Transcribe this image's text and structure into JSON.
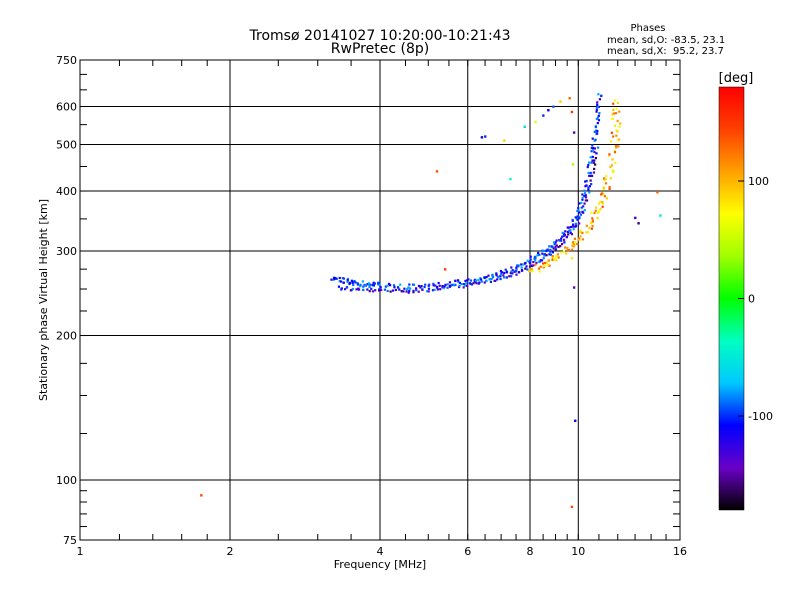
{
  "header": {
    "title_line1": "Tromsø 20141027 10:20:00-10:21:43",
    "title_line2": "RwPretec (8p)"
  },
  "stats": {
    "heading": "Phases",
    "line_o": "mean, sd,O: -83.5, 23.1",
    "line_x": "mean, sd,X:  95.2, 23.7"
  },
  "colorbar": {
    "unit": "[deg]",
    "range": [
      -180,
      180
    ],
    "ticks": [
      100,
      0,
      -100
    ],
    "tick_labels": [
      "100",
      "0",
      "-100"
    ],
    "gradient_colors": [
      "#000000",
      "#6a00c8",
      "#0000ff",
      "#00c8ff",
      "#00ffc0",
      "#00ff00",
      "#a0ff00",
      "#ffff00",
      "#ffa000",
      "#ff4000",
      "#ff0000"
    ]
  },
  "chart_data": {
    "type": "scatter",
    "title": "Tromsø 20141027 10:20:00-10:21:43",
    "subtitle": "RwPretec (8p)",
    "xlabel": "Frequency [MHz]",
    "ylabel": "Stationary phase Virtual Height [km]",
    "x_scale": "log",
    "y_scale": "log",
    "xlim": [
      1,
      16
    ],
    "ylim": [
      75,
      750
    ],
    "grid": true,
    "x_ticks": [
      1,
      2,
      4,
      6,
      8,
      10,
      16
    ],
    "x_tick_labels": [
      "1",
      "2",
      "4",
      "6",
      "8",
      "10",
      "16"
    ],
    "x_gridlines": [
      2,
      4,
      6,
      8,
      10
    ],
    "y_ticks": [
      75,
      100,
      200,
      300,
      400,
      500,
      600,
      750
    ],
    "y_tick_labels": [
      "75",
      "100",
      "200",
      "300",
      "400",
      "500",
      "600",
      "750"
    ],
    "y_gridlines": [
      100,
      200,
      300,
      400,
      500,
      600
    ],
    "o_mode_trace": {
      "phase_deg": -100,
      "points": [
        [
          3.2,
          264
        ],
        [
          3.4,
          260
        ],
        [
          3.6,
          257
        ],
        [
          3.8,
          255
        ],
        [
          4.0,
          255
        ],
        [
          4.5,
          252
        ],
        [
          5.0,
          254
        ],
        [
          5.5,
          256
        ],
        [
          6.0,
          259
        ],
        [
          6.5,
          263
        ],
        [
          7.0,
          270
        ],
        [
          7.5,
          277
        ],
        [
          8.0,
          287
        ],
        [
          8.5,
          298
        ],
        [
          9.0,
          312
        ],
        [
          9.5,
          330
        ],
        [
          10.0,
          360
        ],
        [
          10.3,
          400
        ],
        [
          10.6,
          460
        ],
        [
          10.8,
          520
        ],
        [
          10.95,
          580
        ],
        [
          11.05,
          640
        ]
      ]
    },
    "o_mode_lower_trace": {
      "phase_deg": -120,
      "points": [
        [
          3.3,
          252
        ],
        [
          3.6,
          249
        ],
        [
          4.0,
          248
        ],
        [
          4.5,
          248
        ],
        [
          5.0,
          249
        ],
        [
          5.5,
          252
        ],
        [
          6.0,
          255
        ],
        [
          6.5,
          259
        ],
        [
          7.0,
          264
        ],
        [
          7.5,
          270
        ],
        [
          8.0,
          279
        ],
        [
          8.5,
          290
        ],
        [
          9.0,
          303
        ],
        [
          9.5,
          320
        ],
        [
          10.0,
          345
        ],
        [
          10.4,
          385
        ],
        [
          10.7,
          440
        ],
        [
          10.9,
          500
        ]
      ]
    },
    "x_mode_trace": {
      "phase_deg": 100,
      "points": [
        [
          8.0,
          272
        ],
        [
          8.5,
          280
        ],
        [
          9.0,
          290
        ],
        [
          9.5,
          303
        ],
        [
          10.0,
          318
        ],
        [
          10.5,
          338
        ],
        [
          11.0,
          365
        ],
        [
          11.3,
          395
        ],
        [
          11.6,
          440
        ],
        [
          11.8,
          500
        ],
        [
          11.9,
          560
        ],
        [
          11.95,
          620
        ]
      ]
    },
    "outliers": [
      {
        "x": 1.75,
        "y": 93,
        "phase_deg": 140
      },
      {
        "x": 5.2,
        "y": 440,
        "phase_deg": 140
      },
      {
        "x": 5.4,
        "y": 275,
        "phase_deg": 150
      },
      {
        "x": 6.4,
        "y": 518,
        "phase_deg": -110
      },
      {
        "x": 6.5,
        "y": 520,
        "phase_deg": -100
      },
      {
        "x": 7.1,
        "y": 510,
        "phase_deg": 90
      },
      {
        "x": 7.3,
        "y": 424,
        "phase_deg": -40
      },
      {
        "x": 7.8,
        "y": 545,
        "phase_deg": -60
      },
      {
        "x": 8.2,
        "y": 558,
        "phase_deg": 60
      },
      {
        "x": 8.5,
        "y": 575,
        "phase_deg": -100
      },
      {
        "x": 8.7,
        "y": 590,
        "phase_deg": -110
      },
      {
        "x": 8.9,
        "y": 600,
        "phase_deg": -90
      },
      {
        "x": 9.2,
        "y": 615,
        "phase_deg": 90
      },
      {
        "x": 9.6,
        "y": 625,
        "phase_deg": 130
      },
      {
        "x": 9.7,
        "y": 585,
        "phase_deg": 150
      },
      {
        "x": 9.8,
        "y": 530,
        "phase_deg": -150
      },
      {
        "x": 9.75,
        "y": 455,
        "phase_deg": 40
      },
      {
        "x": 9.7,
        "y": 290,
        "phase_deg": 80
      },
      {
        "x": 9.8,
        "y": 252,
        "phase_deg": -140
      },
      {
        "x": 9.85,
        "y": 133,
        "phase_deg": -110
      },
      {
        "x": 9.7,
        "y": 88,
        "phase_deg": 140
      },
      {
        "x": 13.0,
        "y": 352,
        "phase_deg": -130
      },
      {
        "x": 13.2,
        "y": 343,
        "phase_deg": -160
      },
      {
        "x": 14.4,
        "y": 398,
        "phase_deg": 130
      },
      {
        "x": 14.6,
        "y": 356,
        "phase_deg": -50
      }
    ]
  }
}
